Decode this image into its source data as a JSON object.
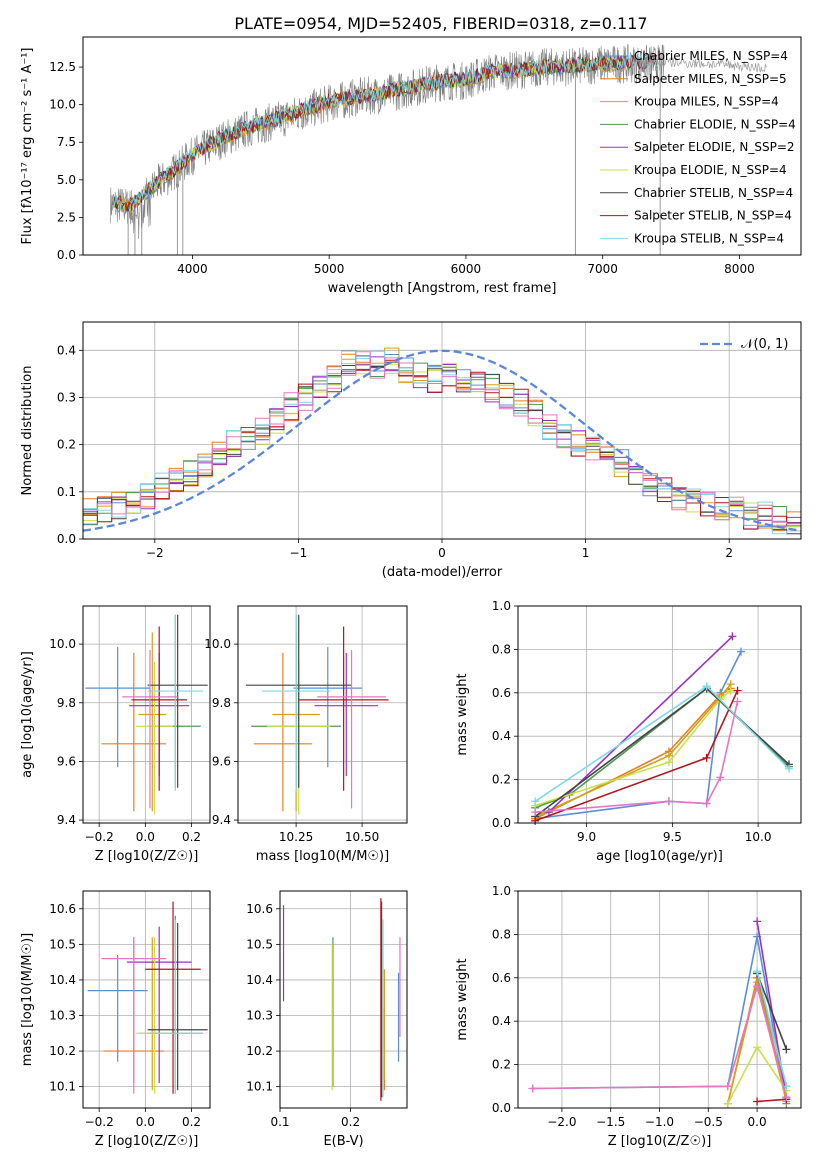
{
  "figure_title": "PLATE=0954, MJD=52405, FIBERID=0318, z=0.117",
  "colors": {
    "Chabrier MILES": "#5a8fd6",
    "Salpeter MILES": "#e67e22",
    "Kroupa MILES": "#d4a017",
    "Chabrier ELODIE": "#4c9a52",
    "Salpeter ELODIE": "#9b30c0",
    "Kroupa ELODIE": "#c8e04a",
    "Chabrier STELIB": "#444444",
    "Salpeter STELIB": "#b0151d",
    "Kroupa STELIB": "#7fd8e8",
    "Pink": "#e377c2",
    "Data": "#808080",
    "Normal": "#5b87d6"
  },
  "chart_data": [
    {
      "type": "line",
      "title": "PLATE=0954, MJD=52405, FIBERID=0318, z=0.117",
      "xlabel": "wavelength [Angstrom, rest frame]",
      "ylabel": "Flux [fλ10⁻¹⁷ erg cm⁻² s⁻¹ A⁻¹]",
      "xlim": [
        3200,
        8450
      ],
      "ylim": [
        0,
        14.5
      ],
      "xticks": [
        4000,
        5000,
        6000,
        7000,
        8000
      ],
      "yticks": [
        0.0,
        2.5,
        5.0,
        7.5,
        10.0,
        12.5
      ],
      "x": [
        3400,
        3550,
        3700,
        3850,
        4000,
        4200,
        4400,
        4600,
        4800,
        5000,
        5200,
        5400,
        5600,
        5800,
        6000,
        6200,
        6400,
        6600,
        6800,
        7000,
        7200,
        7400,
        7600,
        7800,
        8000,
        8200
      ],
      "series": [
        {
          "name": "data",
          "values": [
            3.4,
            3.2,
            4.4,
            5.4,
            6.6,
            7.6,
            8.4,
            8.9,
            9.5,
            10.1,
            10.5,
            10.7,
            11.1,
            11.5,
            11.6,
            12.2,
            12.3,
            12.5,
            12.5,
            12.7,
            12.7,
            12.7,
            12.8,
            12.7,
            12.6,
            12.3
          ]
        },
        {
          "name": "model",
          "values": [
            3.5,
            3.3,
            4.5,
            5.5,
            6.7,
            7.7,
            8.5,
            9.0,
            9.6,
            10.2,
            10.5,
            10.8,
            11.2,
            11.5,
            11.7,
            12.2,
            12.3,
            12.5,
            12.6,
            12.7,
            12.8,
            12.8,
            12.8,
            12.7,
            12.6,
            12.4
          ]
        }
      ],
      "legend_position": "upper-right",
      "legend": [
        "Chabrier MILES, N_SSP=4",
        "Salpeter MILES, N_SSP=5",
        "Kroupa MILES, N_SSP=4",
        "Chabrier ELODIE, N_SSP=4",
        "Salpeter ELODIE, N_SSP=2",
        "Kroupa ELODIE, N_SSP=4",
        "Chabrier STELIB, N_SSP=4",
        "Salpeter STELIB, N_SSP=4",
        "Kroupa STELIB, N_SSP=4"
      ]
    },
    {
      "type": "line",
      "xlabel": "(data-model)/error",
      "ylabel": "Normed distribution",
      "xlim": [
        -2.5,
        2.5
      ],
      "ylim": [
        0,
        0.46
      ],
      "xticks": [
        -2,
        -1,
        0,
        1,
        2
      ],
      "yticks": [
        0.0,
        0.1,
        0.2,
        0.3,
        0.4
      ],
      "grid": true,
      "legend_position": "upper-right",
      "legend": [
        "𝒩(0, 1)"
      ],
      "x": [
        -2.45,
        -2.35,
        -2.25,
        -2.15,
        -2.05,
        -1.95,
        -1.85,
        -1.75,
        -1.65,
        -1.55,
        -1.45,
        -1.35,
        -1.25,
        -1.15,
        -1.05,
        -0.95,
        -0.85,
        -0.75,
        -0.65,
        -0.55,
        -0.45,
        -0.35,
        -0.25,
        -0.15,
        -0.05,
        0.05,
        0.15,
        0.25,
        0.35,
        0.45,
        0.55,
        0.65,
        0.75,
        0.85,
        0.95,
        1.05,
        1.15,
        1.25,
        1.35,
        1.45,
        1.55,
        1.65,
        1.75,
        1.85,
        1.95,
        2.05,
        2.15,
        2.25,
        2.35,
        2.45
      ],
      "series": [
        {
          "name": "histogram",
          "values": [
            0.06,
            0.06,
            0.07,
            0.08,
            0.09,
            0.11,
            0.13,
            0.14,
            0.15,
            0.18,
            0.2,
            0.21,
            0.23,
            0.25,
            0.28,
            0.3,
            0.32,
            0.34,
            0.37,
            0.38,
            0.37,
            0.38,
            0.36,
            0.35,
            0.34,
            0.35,
            0.34,
            0.33,
            0.32,
            0.3,
            0.29,
            0.27,
            0.24,
            0.22,
            0.2,
            0.19,
            0.18,
            0.16,
            0.14,
            0.12,
            0.1,
            0.09,
            0.08,
            0.07,
            0.06,
            0.06,
            0.05,
            0.05,
            0.04,
            0.03
          ]
        }
      ]
    },
    {
      "type": "scatter",
      "xlabel": "Z [log10(Z/Z☉)]",
      "ylabel": "age  [log10(age/yr)]",
      "xlim": [
        -0.27,
        0.28
      ],
      "ylim": [
        9.39,
        10.13
      ],
      "xticks": [
        -0.2,
        0.0,
        0.2
      ],
      "yticks": [
        9.4,
        9.6,
        9.8,
        10.0
      ],
      "grid": true,
      "points": [
        {
          "x": -0.12,
          "y": 9.85,
          "xerr": 0.14,
          "yerr_low": 0.27,
          "yerr_high": 0.14
        },
        {
          "x": -0.05,
          "y": 9.66,
          "xerr": 0.14,
          "yerr_low": 0.23,
          "yerr_high": 0.31
        },
        {
          "x": 0.03,
          "y": 9.76,
          "xerr": 0.06,
          "yerr_low": 0.33,
          "yerr_high": 0.28
        },
        {
          "x": 0.13,
          "y": 9.72,
          "xerr": 0.11,
          "yerr_low": 0.21,
          "yerr_high": 0.38
        },
        {
          "x": 0.06,
          "y": 9.79,
          "xerr": 0.13,
          "yerr_low": 0.24,
          "yerr_high": 0.18
        },
        {
          "x": 0.04,
          "y": 9.72,
          "xerr": 0.08,
          "yerr_low": 0.3,
          "yerr_high": 0.22
        },
        {
          "x": 0.14,
          "y": 9.86,
          "xerr": 0.13,
          "yerr_low": 0.35,
          "yerr_high": 0.24
        },
        {
          "x": 0.06,
          "y": 9.81,
          "xerr": 0.12,
          "yerr_low": 0.31,
          "yerr_high": 0.25
        },
        {
          "x": 0.13,
          "y": 9.84,
          "xerr": 0.12,
          "yerr_low": 0.34,
          "yerr_high": 0.26
        },
        {
          "x": 0.02,
          "y": 9.82,
          "xerr": 0.12,
          "yerr_low": 0.38,
          "yerr_high": 0.16
        }
      ]
    },
    {
      "type": "scatter",
      "xlabel": "mass [log10(M/M☉)]",
      "ylabel": "",
      "xlim": [
        10.03,
        10.67
      ],
      "ylim": [
        9.39,
        10.13
      ],
      "xticks": [
        10.25,
        10.5
      ],
      "yticks": [
        9.4,
        9.6,
        9.8,
        10.0
      ],
      "grid": true,
      "points": [
        {
          "x": 10.37,
          "y": 9.85,
          "xerr": 0.13,
          "yerr_low": 0.27,
          "yerr_high": 0.14
        },
        {
          "x": 10.2,
          "y": 9.66,
          "xerr": 0.11,
          "yerr_low": 0.23,
          "yerr_high": 0.31
        },
        {
          "x": 10.25,
          "y": 9.76,
          "xerr": 0.09,
          "yerr_low": 0.33,
          "yerr_high": 0.28
        },
        {
          "x": 10.25,
          "y": 9.72,
          "xerr": 0.17,
          "yerr_low": 0.21,
          "yerr_high": 0.38
        },
        {
          "x": 10.44,
          "y": 9.79,
          "xerr": 0.12,
          "yerr_low": 0.24,
          "yerr_high": 0.18
        },
        {
          "x": 10.26,
          "y": 9.72,
          "xerr": 0.12,
          "yerr_low": 0.3,
          "yerr_high": 0.22
        },
        {
          "x": 10.26,
          "y": 9.86,
          "xerr": 0.2,
          "yerr_low": 0.35,
          "yerr_high": 0.24
        },
        {
          "x": 10.43,
          "y": 9.81,
          "xerr": 0.17,
          "yerr_low": 0.31,
          "yerr_high": 0.25
        },
        {
          "x": 10.25,
          "y": 9.84,
          "xerr": 0.13,
          "yerr_low": 0.34,
          "yerr_high": 0.26
        },
        {
          "x": 10.46,
          "y": 9.82,
          "xerr": 0.13,
          "yerr_low": 0.38,
          "yerr_high": 0.16
        }
      ]
    },
    {
      "type": "line",
      "xlabel": "age  [log10(age/yr)]",
      "ylabel": "mass weight",
      "xlim": [
        8.6,
        10.25
      ],
      "ylim": [
        0,
        1.0
      ],
      "xticks": [
        9.0,
        9.5,
        10.0
      ],
      "yticks": [
        0.0,
        0.2,
        0.4,
        0.6,
        0.8,
        1.0
      ],
      "grid": true,
      "series": [
        {
          "name": "Chabrier MILES",
          "x": [
            8.7,
            9.48,
            9.7,
            9.78,
            9.9
          ],
          "values": [
            0.02,
            0.1,
            0.09,
            0.6,
            0.79
          ]
        },
        {
          "name": "Salpeter MILES",
          "x": [
            8.7,
            9.48,
            9.78,
            9.84
          ],
          "values": [
            0.02,
            0.33,
            0.59,
            0.62
          ]
        },
        {
          "name": "Kroupa MILES",
          "x": [
            8.7,
            9.48,
            9.78,
            9.84
          ],
          "values": [
            0.03,
            0.31,
            0.58,
            0.64
          ]
        },
        {
          "name": "Chabrier ELODIE",
          "x": [
            8.7,
            8.9,
            9.7,
            10.18
          ],
          "values": [
            0.07,
            0.13,
            0.62,
            0.26
          ]
        },
        {
          "name": "Salpeter ELODIE",
          "x": [
            8.78,
            9.85
          ],
          "values": [
            0.05,
            0.86
          ]
        },
        {
          "name": "Kroupa ELODIE",
          "x": [
            8.7,
            9.48,
            9.78,
            9.84
          ],
          "values": [
            0.08,
            0.28,
            0.57,
            0.61
          ]
        },
        {
          "name": "Chabrier STELIB",
          "x": [
            8.7,
            9.7,
            10.18
          ],
          "values": [
            0.03,
            0.62,
            0.27
          ]
        },
        {
          "name": "Salpeter STELIB",
          "x": [
            8.7,
            9.7,
            9.88
          ],
          "values": [
            0.01,
            0.3,
            0.61
          ]
        },
        {
          "name": "Kroupa STELIB",
          "x": [
            8.7,
            9.7,
            10.18
          ],
          "values": [
            0.1,
            0.63,
            0.25
          ]
        },
        {
          "name": "Pink",
          "x": [
            8.7,
            9.48,
            9.7,
            9.78,
            9.88
          ],
          "values": [
            0.05,
            0.1,
            0.09,
            0.21,
            0.56
          ]
        }
      ]
    },
    {
      "type": "scatter",
      "xlabel": "Z [log10(Z/Z☉)]",
      "ylabel": "mass [log10(M/M☉)]",
      "xlim": [
        -0.27,
        0.28
      ],
      "ylim": [
        10.04,
        10.65
      ],
      "xticks": [
        -0.2,
        0.0,
        0.2
      ],
      "yticks": [
        10.1,
        10.2,
        10.3,
        10.4,
        10.5,
        10.6
      ],
      "grid": true,
      "points": [
        {
          "x": -0.12,
          "y": 10.37,
          "xerr": 0.13,
          "yerr_low": 0.2,
          "yerr_high": 0.1
        },
        {
          "x": -0.05,
          "y": 10.2,
          "xerr": 0.13,
          "yerr_low": 0.09,
          "yerr_high": 0.32
        },
        {
          "x": 0.03,
          "y": 10.25,
          "xerr": 0.06,
          "yerr_low": 0.16,
          "yerr_high": 0.27
        },
        {
          "x": 0.13,
          "y": 10.25,
          "xerr": 0.12,
          "yerr_low": 0.17,
          "yerr_high": 0.33
        },
        {
          "x": 0.06,
          "y": 10.45,
          "xerr": 0.14,
          "yerr_low": 0.34,
          "yerr_high": 0.1
        },
        {
          "x": 0.04,
          "y": 10.25,
          "xerr": 0.08,
          "yerr_low": 0.17,
          "yerr_high": 0.27
        },
        {
          "x": 0.14,
          "y": 10.26,
          "xerr": 0.13,
          "yerr_low": 0.17,
          "yerr_high": 0.3
        },
        {
          "x": 0.12,
          "y": 10.43,
          "xerr": 0.12,
          "yerr_low": 0.35,
          "yerr_high": 0.19
        },
        {
          "x": 0.13,
          "y": 10.25,
          "xerr": 0.12,
          "yerr_low": 0.17,
          "yerr_high": 0.32
        },
        {
          "x": -0.05,
          "y": 10.46,
          "xerr": 0.14,
          "yerr_low": 0.38,
          "yerr_high": 0.06
        }
      ]
    },
    {
      "type": "scatter",
      "xlabel": "E(B-V)",
      "ylabel": "",
      "xlim": [
        0.1,
        0.28
      ],
      "ylim": [
        10.04,
        10.65
      ],
      "xticks": [
        0.1,
        0.2
      ],
      "yticks": [
        10.1,
        10.2,
        10.3,
        10.4,
        10.5,
        10.6
      ],
      "grid": true,
      "points": [
        {
          "x": 0.268,
          "y": 10.3,
          "yerr_low": 0.13,
          "yerr_high": 0.12
        },
        {
          "x": 0.248,
          "y": 10.2,
          "yerr_low": 0.11,
          "yerr_high": 0.12
        },
        {
          "x": 0.248,
          "y": 10.26,
          "yerr_low": 0.14,
          "yerr_high": 0.17
        },
        {
          "x": 0.175,
          "y": 10.3,
          "yerr_low": 0.2,
          "yerr_high": 0.22
        },
        {
          "x": 0.105,
          "y": 10.47,
          "yerr_low": 0.13,
          "yerr_high": 0.14
        },
        {
          "x": 0.174,
          "y": 10.3,
          "yerr_low": 0.21,
          "yerr_high": 0.2
        },
        {
          "x": 0.244,
          "y": 10.35,
          "yerr_low": 0.28,
          "yerr_high": 0.27
        },
        {
          "x": 0.243,
          "y": 10.35,
          "yerr_low": 0.29,
          "yerr_high": 0.28
        },
        {
          "x": 0.246,
          "y": 10.32,
          "yerr_low": 0.25,
          "yerr_high": 0.25
        },
        {
          "x": 0.27,
          "y": 10.38,
          "yerr_low": 0.14,
          "yerr_high": 0.14
        }
      ]
    },
    {
      "type": "line",
      "xlabel": "Z [log10(Z/Z☉)]",
      "ylabel": "mass weight",
      "xlim": [
        -2.45,
        0.45
      ],
      "ylim": [
        0,
        1.0
      ],
      "xticks": [
        -2.0,
        -1.5,
        -1.0,
        -0.5,
        0.0
      ],
      "yticks": [
        0.0,
        0.2,
        0.4,
        0.6,
        0.8,
        1.0
      ],
      "grid": true,
      "series": [
        {
          "name": "Chabrier MILES",
          "x": [
            -2.3,
            -0.3,
            0.0,
            0.3
          ],
          "values": [
            0.09,
            0.1,
            0.79,
            0.02
          ]
        },
        {
          "name": "Salpeter MILES",
          "x": [
            -0.3,
            0.0,
            0.3
          ],
          "values": [
            0.02,
            0.6,
            0.05
          ]
        },
        {
          "name": "Kroupa MILES",
          "x": [
            -0.3,
            0.0,
            0.3
          ],
          "values": [
            0.02,
            0.58,
            0.03
          ]
        },
        {
          "name": "Chabrier ELODIE",
          "x": [
            0.0,
            0.3
          ],
          "values": [
            0.62,
            0.1
          ]
        },
        {
          "name": "Salpeter ELODIE",
          "x": [
            0.0,
            0.3
          ],
          "values": [
            0.86,
            0.05
          ]
        },
        {
          "name": "Kroupa ELODIE",
          "x": [
            -0.3,
            0.0,
            0.3
          ],
          "values": [
            0.02,
            0.28,
            0.08
          ]
        },
        {
          "name": "Chabrier STELIB",
          "x": [
            0.0,
            0.3
          ],
          "values": [
            0.62,
            0.27
          ]
        },
        {
          "name": "Salpeter STELIB",
          "x": [
            0.0,
            0.3
          ],
          "values": [
            0.03,
            0.04
          ]
        },
        {
          "name": "Kroupa STELIB",
          "x": [
            0.0,
            0.3
          ],
          "values": [
            0.63,
            0.1
          ]
        },
        {
          "name": "Pink",
          "x": [
            -2.3,
            -0.3,
            0.0,
            0.3
          ],
          "values": [
            0.09,
            0.1,
            0.56,
            0.05
          ]
        }
      ]
    }
  ]
}
